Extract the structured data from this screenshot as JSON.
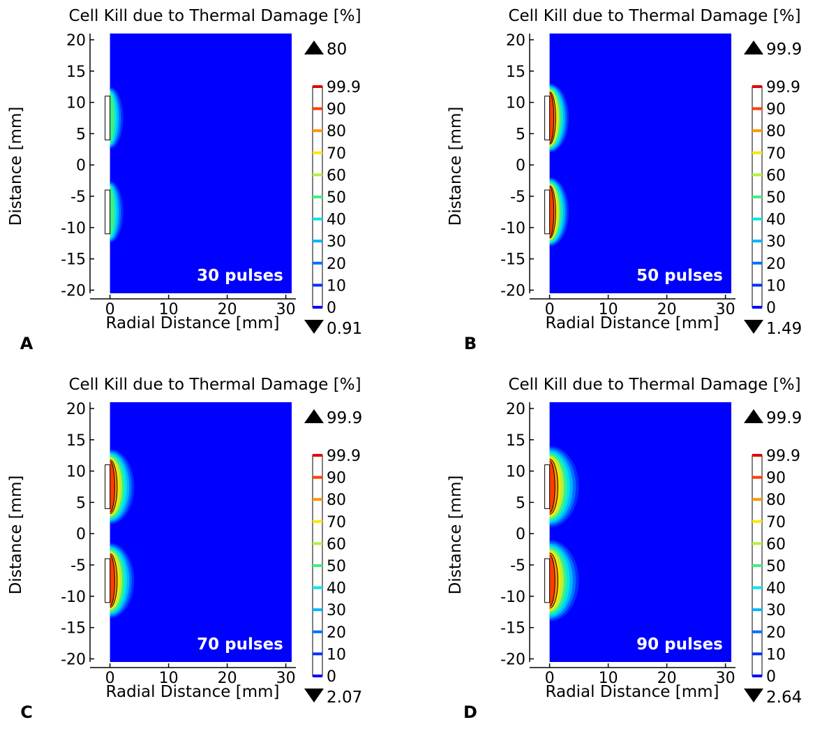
{
  "colors": {
    "background_blue": "#0000ff",
    "contour_line": "#000000",
    "axis": "#000000"
  },
  "chart_data": [
    {
      "type": "heatmap",
      "panel_label": "A",
      "title": "Cell Kill due to Thermal Damage [%]",
      "xlabel": "Radial Distance [mm]",
      "ylabel": "Distance [mm]",
      "annotation": "30 pulses",
      "xlim": [
        -1.5,
        31
      ],
      "ylim": [
        -20.5,
        21
      ],
      "xticks": [
        "0",
        "10",
        "20",
        "30"
      ],
      "yticks": [
        "20",
        "15",
        "10",
        "5",
        "0",
        "-5",
        "-10",
        "-15",
        "-20"
      ],
      "colorbar_levels": [
        "99.9",
        "90",
        "80",
        "70",
        "60",
        "50",
        "40",
        "30",
        "20",
        "10",
        "0"
      ],
      "colorbar_max": "80",
      "colorbar_min": "0.91",
      "electrode_segments": [
        [
          4,
          11
        ],
        [
          -11,
          -4
        ]
      ],
      "lesion_scale": 0.55,
      "center_max_level": 5
    },
    {
      "type": "heatmap",
      "panel_label": "B",
      "title": "Cell Kill due to Thermal Damage [%]",
      "xlabel": "Radial Distance [mm]",
      "ylabel": "Distance [mm]",
      "annotation": "50 pulses",
      "xlim": [
        -1.5,
        31
      ],
      "ylim": [
        -20.5,
        21
      ],
      "xticks": [
        "0",
        "10",
        "20",
        "30"
      ],
      "yticks": [
        "20",
        "15",
        "10",
        "5",
        "0",
        "-5",
        "-10",
        "-15",
        "-20"
      ],
      "colorbar_levels": [
        "99.9",
        "90",
        "80",
        "70",
        "60",
        "50",
        "40",
        "30",
        "20",
        "10",
        "0"
      ],
      "colorbar_max": "99.9",
      "colorbar_min": "1.49",
      "electrode_segments": [
        [
          4,
          11
        ],
        [
          -11,
          -4
        ]
      ],
      "lesion_scale": 0.85,
      "center_max_level": 9
    },
    {
      "type": "heatmap",
      "panel_label": "C",
      "title": "Cell Kill due to Thermal Damage [%]",
      "xlabel": "Radial Distance [mm]",
      "ylabel": "Distance [mm]",
      "annotation": "70 pulses",
      "xlim": [
        -1.5,
        31
      ],
      "ylim": [
        -20.5,
        21
      ],
      "xticks": [
        "0",
        "10",
        "20",
        "30"
      ],
      "yticks": [
        "20",
        "15",
        "10",
        "5",
        "0",
        "-5",
        "-10",
        "-15",
        "-20"
      ],
      "colorbar_levels": [
        "99.9",
        "90",
        "80",
        "70",
        "60",
        "50",
        "40",
        "30",
        "20",
        "10",
        "0"
      ],
      "colorbar_max": "99.9",
      "colorbar_min": "2.07",
      "electrode_segments": [
        [
          4,
          11
        ],
        [
          -11,
          -4
        ]
      ],
      "lesion_scale": 1.1,
      "center_max_level": 9
    },
    {
      "type": "heatmap",
      "panel_label": "D",
      "title": "Cell Kill due to Thermal Damage [%]",
      "xlabel": "Radial Distance [mm]",
      "ylabel": "Distance [mm]",
      "annotation": "90 pulses",
      "xlim": [
        -1.5,
        31
      ],
      "ylim": [
        -20.5,
        21
      ],
      "xticks": [
        "0",
        "10",
        "20",
        "30"
      ],
      "yticks": [
        "20",
        "15",
        "10",
        "5",
        "0",
        "-5",
        "-10",
        "-15",
        "-20"
      ],
      "colorbar_levels": [
        "99.9",
        "90",
        "80",
        "70",
        "60",
        "50",
        "40",
        "30",
        "20",
        "10",
        "0"
      ],
      "colorbar_max": "99.9",
      "colorbar_min": "2.64",
      "electrode_segments": [
        [
          4,
          11
        ],
        [
          -11,
          -4
        ]
      ],
      "lesion_scale": 1.35,
      "center_max_level": 9
    }
  ]
}
